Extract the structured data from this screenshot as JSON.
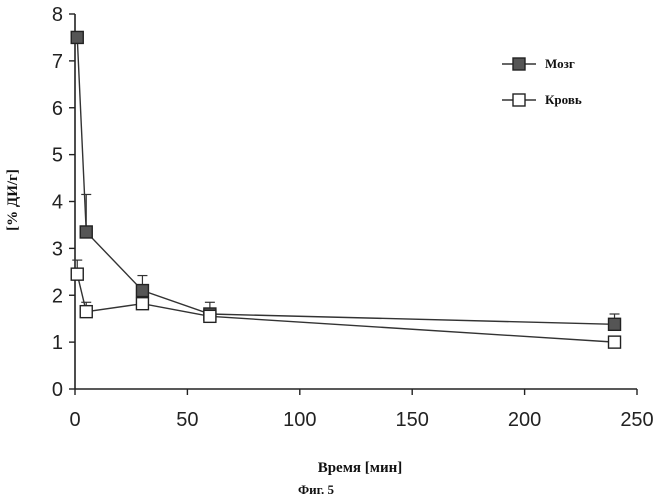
{
  "chart_data": {
    "type": "line",
    "xlabel": "Время [мин]",
    "ylabel": "[% ДИ/г]",
    "caption": "Фиг. 5",
    "xlim": [
      0,
      250
    ],
    "ylim": [
      0,
      8
    ],
    "x_ticks": [
      0,
      50,
      100,
      150,
      200,
      250
    ],
    "y_ticks": [
      0,
      1,
      2,
      3,
      4,
      5,
      6,
      7,
      8
    ],
    "grid": false,
    "legend_position": "top-right",
    "series": [
      {
        "name": "Мозг",
        "marker": "filled-square",
        "color": "#333333",
        "points": [
          {
            "x": 1,
            "y": 7.5,
            "err": 0
          },
          {
            "x": 5,
            "y": 3.35,
            "err": 0.8
          },
          {
            "x": 30,
            "y": 2.1,
            "err": 0.32
          },
          {
            "x": 60,
            "y": 1.6,
            "err": 0.25
          },
          {
            "x": 240,
            "y": 1.38,
            "err": 0.22
          }
        ]
      },
      {
        "name": "Кровь",
        "marker": "open-square",
        "color": "#333333",
        "points": [
          {
            "x": 1,
            "y": 2.45,
            "err": 0.3
          },
          {
            "x": 5,
            "y": 1.65,
            "err": 0.2
          },
          {
            "x": 30,
            "y": 1.82,
            "err": 0.12
          },
          {
            "x": 60,
            "y": 1.55,
            "err": 0.1
          },
          {
            "x": 240,
            "y": 1.0,
            "err": 0.05
          }
        ]
      }
    ]
  }
}
